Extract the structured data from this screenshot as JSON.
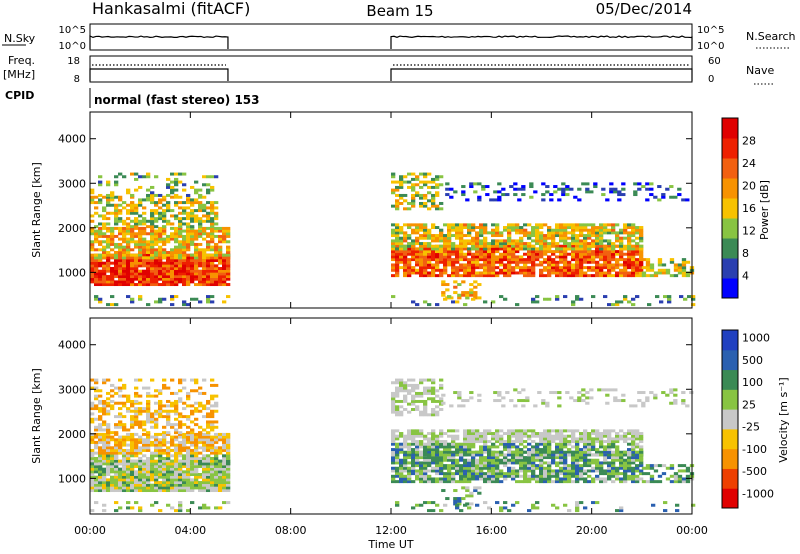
{
  "header": {
    "title": "Hankasalmi (fitACF)",
    "beam": "Beam 15",
    "date": "05/Dec/2014"
  },
  "summary": {
    "nsky_label": "N.Sky",
    "nsky_top": "10^5",
    "nsky_bottom": "10^0",
    "nsearch_label": "N.Search",
    "nsearch_top": "10^5",
    "nsearch_bottom": "10^0",
    "freq_label_1": "Freq.",
    "freq_label_2": "[MHz]",
    "freq_top": "18",
    "freq_bottom": "8",
    "nave_label": "Nave",
    "nave_top": "60",
    "nave_bottom": "0",
    "cpid_label": "CPID",
    "cpid_text": "normal (fast stereo) 153"
  },
  "colors": {
    "power": [
      "#0000ff",
      "#2a3fb0",
      "#3b8a55",
      "#88c442",
      "#f7c200",
      "#f79200",
      "#f26010",
      "#ee2000",
      "#e00000"
    ],
    "velocity": [
      "#e00000",
      "#ee4000",
      "#f79200",
      "#f7c200",
      "#c8c8c8",
      "#88c442",
      "#3b8a55",
      "#2a60b0",
      "#2040c0"
    ]
  },
  "chart_data": [
    {
      "type": "heatmap",
      "quantity": "power",
      "ylabel": "Slant Range [km]",
      "yticks": [
        1000,
        2000,
        3000,
        4000
      ],
      "ylim": [
        200,
        4600
      ],
      "colorbar_label": "Power [dB]",
      "colorbar_ticks": [
        4,
        8,
        12,
        16,
        20,
        24,
        28
      ],
      "colorbar_range": [
        0,
        32
      ],
      "data_intervals_hours": [
        [
          0,
          5.5
        ],
        [
          12,
          24
        ]
      ]
    },
    {
      "type": "heatmap",
      "quantity": "velocity",
      "ylabel": "Slant Range [km]",
      "yticks": [
        1000,
        2000,
        3000,
        4000
      ],
      "ylim": [
        200,
        4600
      ],
      "colorbar_label": "Velocity [m s⁻¹]",
      "colorbar_ticks": [
        "1000",
        "500",
        "100",
        "25",
        "-25",
        "-100",
        "-500",
        "-1000"
      ],
      "data_intervals_hours": [
        [
          0,
          5.5
        ],
        [
          12,
          24
        ]
      ]
    }
  ],
  "xaxis": {
    "label": "Time UT",
    "ticks": [
      "00:00",
      "04:00",
      "08:00",
      "12:00",
      "16:00",
      "20:00",
      "00:00"
    ],
    "range_hours": [
      0,
      24
    ]
  }
}
